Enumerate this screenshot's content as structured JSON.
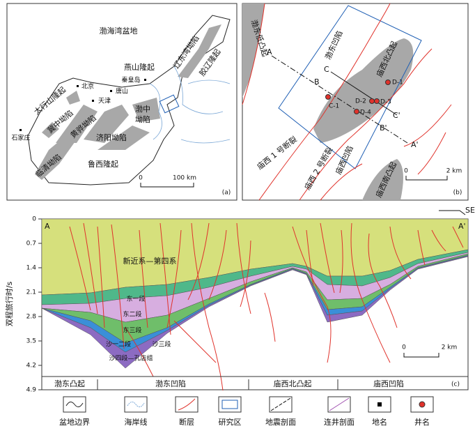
{
  "panel_a": {
    "labels": [
      "渤海湾盆地",
      "燕山隆起",
      "秦皇岛",
      "辽东湾坳陷",
      "胶辽隆起",
      "太行山隆起",
      "北京",
      "唐山",
      "天津",
      "冀中坳陷",
      "黄骅坳陷",
      "渤中",
      "坳陷",
      "济阳坳陷",
      "石家庄",
      "临清坳陷",
      "鲁西隆起"
    ],
    "scale_start": 0,
    "scale_end": "100 km",
    "tag": "(a)"
  },
  "panel_b": {
    "labels": [
      "渤东低凸起",
      "渤东凹陷",
      "庙西北凸起",
      "庙西 1 号断裂",
      "庙西 2 号断裂",
      "庙西凹陷",
      "庙西南凸起"
    ],
    "section_points": [
      "A",
      "B",
      "C",
      "C'",
      "B'",
      "A'"
    ],
    "wells": [
      "D-1",
      "D-2",
      "D-3",
      "D-4",
      "C-1"
    ],
    "scale_start": 0,
    "scale_end": "2 km",
    "tag": "(b)"
  },
  "panel_c": {
    "y_label": "双程旅行时/s",
    "ylim": [
      0,
      4.9
    ],
    "yticks": [
      0,
      0.7,
      1.4,
      2.1,
      2.8,
      3.5,
      4.2,
      4.9
    ],
    "direction": "SE",
    "ends": [
      "A",
      "A'"
    ],
    "units": [
      "新近系—第四系",
      "东一段",
      "东二段",
      "东三段",
      "沙一二段",
      "沙三段",
      "沙四段—孔店组"
    ],
    "scale_start": 0,
    "scale_end": "2 km",
    "zones": [
      "渤东凸起",
      "渤东凹陷",
      "庙西北凸起",
      "庙西凹陷"
    ],
    "tag": "(c)"
  },
  "legend": [
    "盆地边界",
    "海岸线",
    "断层",
    "研究区",
    "地震剖面",
    "连井剖面",
    "地名",
    "井名"
  ]
}
